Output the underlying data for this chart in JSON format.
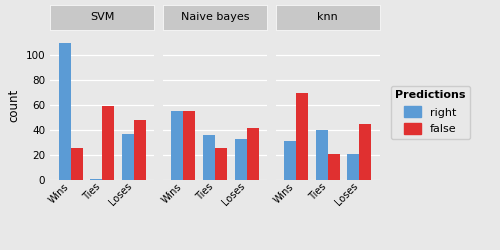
{
  "panels": [
    "SVM",
    "Naive bayes",
    "knn"
  ],
  "categories": [
    "Wins",
    "Ties",
    "Loses"
  ],
  "right_values": {
    "SVM": [
      110,
      1,
      37
    ],
    "Naive bayes": [
      55,
      36,
      33
    ],
    "knn": [
      31,
      40,
      21
    ]
  },
  "false_values": {
    "SVM": [
      26,
      59,
      48
    ],
    "Naive bayes": [
      55,
      26,
      42
    ],
    "knn": [
      70,
      21,
      45
    ]
  },
  "color_right": "#5b9bd5",
  "color_false": "#e03030",
  "ylabel": "count",
  "ylim": [
    0,
    120
  ],
  "yticks": [
    0,
    20,
    40,
    60,
    80,
    100
  ],
  "legend_title": "Predictions",
  "legend_labels": [
    "right",
    "false"
  ],
  "facet_bg": "#c8c8c8",
  "plot_bg": "#e8e8e8",
  "fig_bg": "#e8e8e8",
  "bar_width": 0.38,
  "figsize": [
    5.0,
    2.5
  ]
}
